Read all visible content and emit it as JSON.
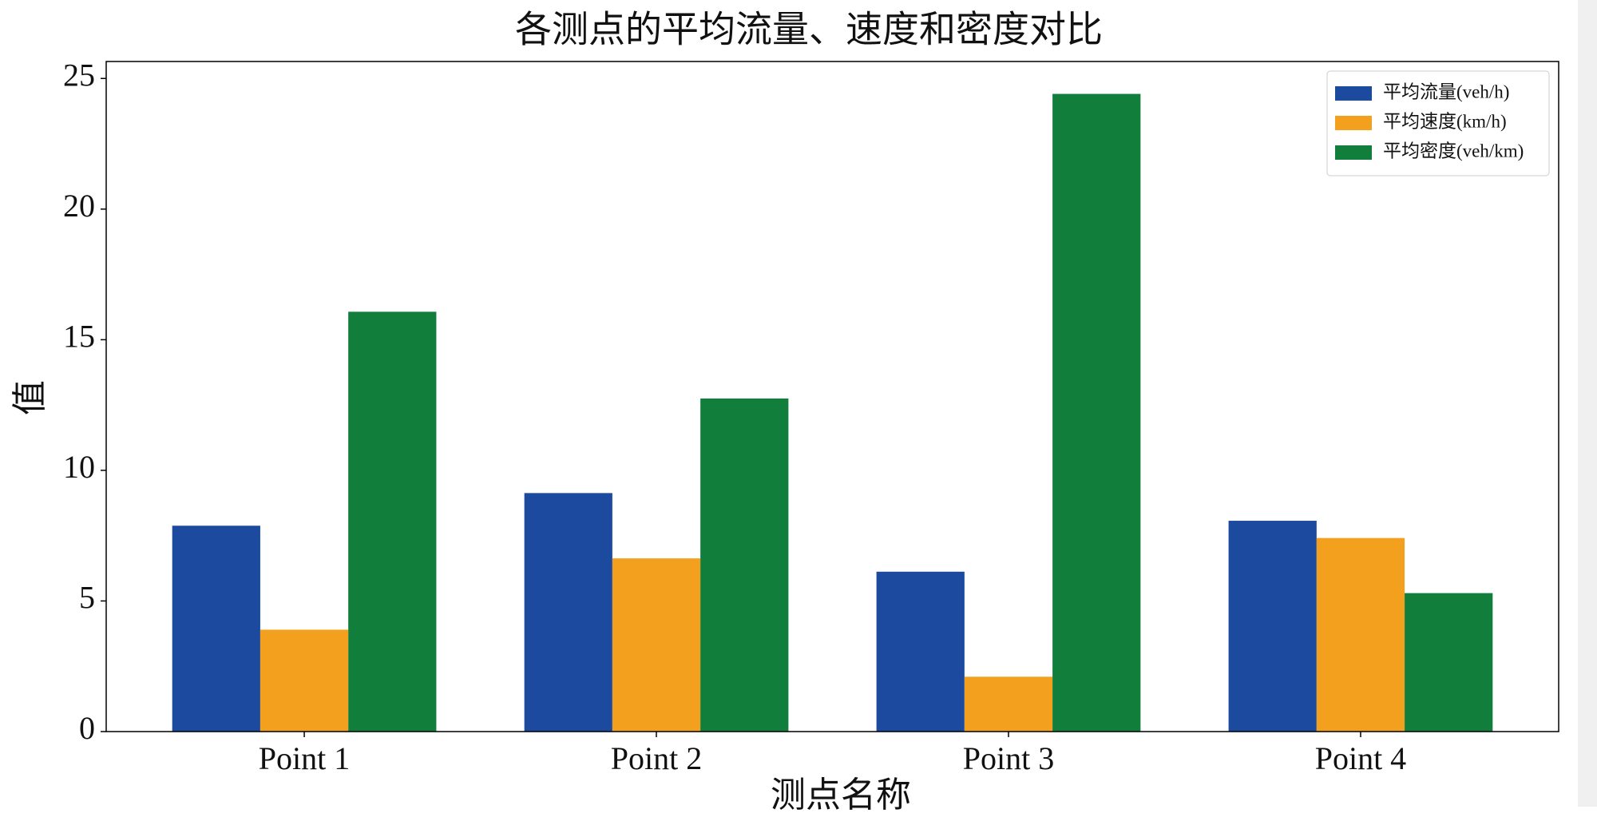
{
  "chart_data": {
    "type": "bar",
    "title": "各测点的平均流量、速度和密度对比",
    "xlabel": "测点名称",
    "ylabel": "值",
    "categories": [
      "Point 1",
      "Point 2",
      "Point 3",
      "Point 4"
    ],
    "series": [
      {
        "name": "平均流量(veh/h)",
        "color": "#1c4a9e",
        "values": [
          7.88,
          9.13,
          6.12,
          8.07
        ]
      },
      {
        "name": "平均速度(km/h)",
        "color": "#f2a01e",
        "values": [
          3.9,
          6.63,
          2.1,
          7.41
        ]
      },
      {
        "name": "平均密度(veh/km)",
        "color": "#117e3b",
        "values": [
          16.07,
          12.75,
          24.41,
          5.3
        ]
      }
    ],
    "ylim": [
      0,
      25.65
    ],
    "yticks": [
      0,
      5,
      10,
      15,
      20,
      25
    ],
    "legend": "upper right"
  }
}
